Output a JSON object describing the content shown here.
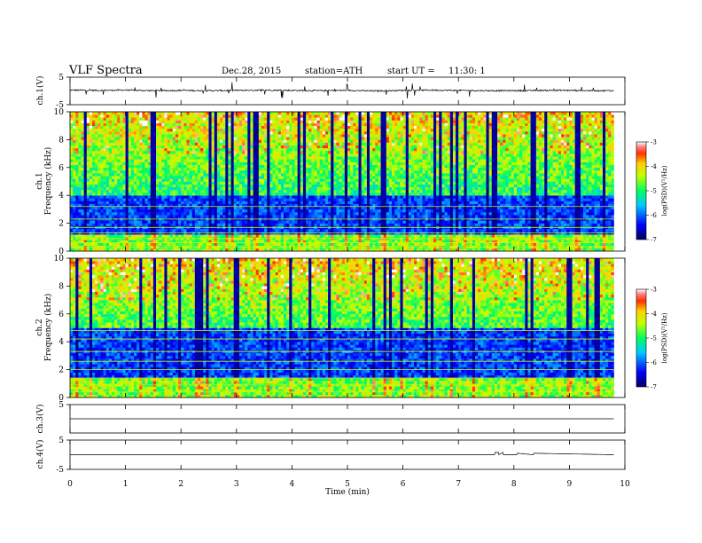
{
  "header": {
    "title": "VLF Spectra",
    "date": "Dec.28, 2015",
    "station": "station=ATH",
    "start_label": "start  UT =",
    "start_time": "11:30: 1"
  },
  "chart_data": [
    {
      "type": "line",
      "panel": "ch.1 voltage",
      "ylabel": "ch.1(V)",
      "ylim": [
        -5,
        5
      ],
      "yticks": [
        -5,
        5
      ],
      "xlim": [
        0,
        10
      ],
      "x": [
        0,
        0.5,
        1,
        1.5,
        2,
        2.5,
        3,
        3.5,
        4,
        4.5,
        5,
        5.5,
        6,
        6.5,
        7,
        7.5,
        8,
        8.5,
        9,
        9.5,
        9.8
      ],
      "y": [
        0.3,
        0.2,
        0.3,
        0.1,
        0.2,
        0.1,
        0.2,
        0.3,
        0.2,
        0.1,
        0.2,
        0.0,
        0.2,
        0.3,
        0.2,
        0.1,
        0.1,
        0.2,
        0.2,
        0.1,
        0.1
      ]
    },
    {
      "type": "heatmap",
      "panel": "ch.1 spectrogram",
      "ylabel_channel": "ch.1",
      "ylabel": "Frequency (kHz)",
      "ylim": [
        0,
        10
      ],
      "yticks": [
        0,
        2,
        4,
        6,
        8,
        10
      ],
      "xlim": [
        0,
        10
      ],
      "colorbar": {
        "label": "log(PSD)(V²/Hz)",
        "range": [
          -7,
          -3
        ],
        "ticks": [
          -3,
          -4,
          -5,
          -6,
          -7
        ]
      }
    },
    {
      "type": "heatmap",
      "panel": "ch.2 spectrogram",
      "ylabel_channel": "ch.2",
      "ylabel": "Frequency (kHz)",
      "ylim": [
        0,
        10
      ],
      "yticks": [
        0,
        2,
        4,
        6,
        8,
        10
      ],
      "xlim": [
        0,
        10
      ],
      "colorbar": {
        "label": "log(PSD)(V²/Hz)",
        "range": [
          -7,
          -3
        ],
        "ticks": [
          -3,
          -4,
          -5,
          -6,
          -7
        ]
      }
    },
    {
      "type": "line",
      "panel": "ch.3 voltage",
      "ylabel": "ch.3(V)",
      "ylim": [
        -5,
        5
      ],
      "yticks": [
        5
      ],
      "xlim": [
        0,
        10
      ],
      "x": [
        0,
        9.8
      ],
      "y": [
        0,
        0
      ]
    },
    {
      "type": "line",
      "panel": "ch.4 voltage",
      "ylabel": "ch.4(V)",
      "ylim": [
        -5,
        5
      ],
      "yticks": [
        -5,
        5
      ],
      "xlim": [
        0,
        10
      ],
      "x": [
        0,
        7.65,
        7.66,
        7.72,
        7.73,
        7.8,
        7.81,
        8.05,
        8.06,
        8.35,
        8.36,
        9.8
      ],
      "y": [
        0,
        0,
        0.8,
        0.8,
        0,
        0.8,
        0,
        0,
        0.5,
        0,
        0.5,
        0
      ]
    }
  ],
  "xaxis": {
    "label": "Time (min)",
    "ticks": [
      0,
      1,
      2,
      3,
      4,
      5,
      6,
      7,
      8,
      9,
      10
    ]
  }
}
